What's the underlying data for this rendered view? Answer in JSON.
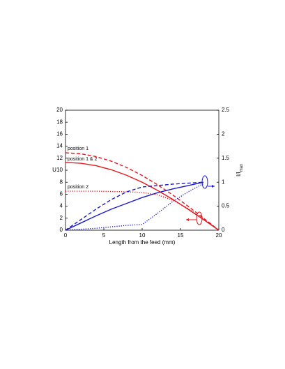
{
  "chart_data": {
    "type": "line",
    "xlabel": "Length from the feed (mm)",
    "ylabel": "U",
    "y2label": {
      "main": "I/I",
      "sub": "max"
    },
    "annotations": [
      "position 1",
      "position 1 & 2",
      "position 2"
    ],
    "x": [
      0,
      2,
      4,
      6,
      8,
      10,
      12,
      14,
      16,
      18,
      20
    ],
    "xlim": [
      0,
      20
    ],
    "xticks": [
      0,
      5,
      10,
      15,
      20
    ],
    "ylim": [
      0,
      20
    ],
    "yticks": [
      0,
      2,
      4,
      6,
      8,
      10,
      12,
      14,
      16,
      18,
      20
    ],
    "y2lim": [
      0,
      2.5
    ],
    "y2ticks": [
      0,
      0.5,
      1,
      1.5,
      2,
      2.5
    ],
    "series": [
      {
        "color": "#e8141c",
        "dash": "dashed",
        "values": [
          12.9,
          12.74,
          12.27,
          11.49,
          10.44,
          9.12,
          7.58,
          5.86,
          3.99,
          2.02,
          0
        ]
      },
      {
        "color": "#e8141c",
        "dash": "solid",
        "values": [
          11.3,
          11.16,
          10.75,
          10.07,
          9.14,
          7.99,
          6.64,
          5.13,
          3.49,
          1.77,
          0
        ]
      },
      {
        "color": "#e8141c",
        "dash": "dotted",
        "values": [
          6.5,
          6.5,
          6.5,
          6.45,
          6.4,
          6.3,
          5.9,
          5.0,
          3.6,
          1.9,
          0
        ]
      },
      {
        "color": "#1a1acc",
        "dash": "solid",
        "axis": "y2",
        "values": [
          0,
          0.15,
          0.3,
          0.44,
          0.56,
          0.68,
          0.78,
          0.86,
          0.93,
          1.0,
          null
        ]
      },
      {
        "color": "#1a1acc",
        "dash": "dashed",
        "axis": "y2",
        "values": [
          0,
          0.22,
          0.44,
          0.64,
          0.8,
          0.9,
          0.93,
          0.96,
          0.98,
          1.0,
          null
        ]
      },
      {
        "color": "#1a1acc",
        "dash": "dotted",
        "axis": "y2",
        "values": [
          0,
          0.02,
          0.04,
          0.07,
          0.1,
          0.12,
          0.35,
          0.6,
          0.8,
          0.97,
          null
        ]
      }
    ]
  }
}
